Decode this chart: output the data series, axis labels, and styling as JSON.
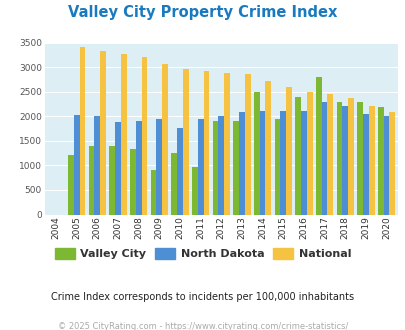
{
  "title": "Valley City Property Crime Index",
  "years": [
    2004,
    2005,
    2006,
    2007,
    2008,
    2009,
    2010,
    2011,
    2012,
    2013,
    2014,
    2015,
    2016,
    2017,
    2018,
    2019,
    2020
  ],
  "valley_city": [
    0,
    1220,
    1400,
    1400,
    1330,
    900,
    1250,
    970,
    1900,
    1900,
    2500,
    1950,
    2400,
    2800,
    2300,
    2300,
    2200
  ],
  "north_dakota": [
    0,
    2030,
    2010,
    1890,
    1900,
    1940,
    1770,
    1950,
    2010,
    2090,
    2110,
    2110,
    2120,
    2300,
    2220,
    2060,
    2000
  ],
  "national": [
    0,
    3420,
    3340,
    3270,
    3220,
    3060,
    2960,
    2930,
    2890,
    2860,
    2730,
    2600,
    2500,
    2460,
    2380,
    2220,
    2100
  ],
  "valley_city_color": "#7db832",
  "north_dakota_color": "#4e8ed4",
  "national_color": "#f5c242",
  "background_color": "#ddeef5",
  "ylim": [
    0,
    3500
  ],
  "yticks": [
    0,
    500,
    1000,
    1500,
    2000,
    2500,
    3000,
    3500
  ],
  "legend_labels": [
    "Valley City",
    "North Dakota",
    "National"
  ],
  "subtitle": "Crime Index corresponds to incidents per 100,000 inhabitants",
  "footer": "© 2025 CityRating.com - https://www.cityrating.com/crime-statistics/",
  "bar_width": 0.28
}
